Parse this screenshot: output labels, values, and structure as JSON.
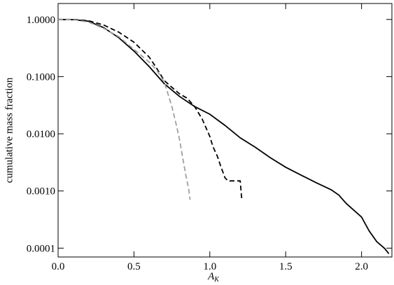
{
  "chart_data": {
    "type": "line",
    "xlabel": "A",
    "xlabel_sub": "K",
    "ylabel": "cumulative mass fraction",
    "xlim": [
      0,
      2.2
    ],
    "ylim": [
      7e-05,
      1.9
    ],
    "ylog": true,
    "xticks": [
      {
        "value": 0,
        "label": "0.0"
      },
      {
        "value": 0.5,
        "label": "0.5"
      },
      {
        "value": 1,
        "label": "1.0"
      },
      {
        "value": 1.5,
        "label": "1.5"
      },
      {
        "value": 2,
        "label": "2.0"
      }
    ],
    "yticks": [
      {
        "value": 1,
        "label": "1.0000"
      },
      {
        "value": 0.1,
        "label": "0.1000"
      },
      {
        "value": 0.01,
        "label": "0.0100"
      },
      {
        "value": 0.001,
        "label": "0.0010"
      },
      {
        "value": 0.0001,
        "label": "0.0001"
      }
    ],
    "series": [
      {
        "color": "#000000",
        "dash": false,
        "x": [
          0,
          0.1,
          0.2,
          0.3,
          0.4,
          0.5,
          0.6,
          0.7,
          0.8,
          0.9,
          1.0,
          1.1,
          1.2,
          1.3,
          1.4,
          1.5,
          1.6,
          1.7,
          1.8,
          1.85,
          1.9,
          2.0,
          2.05,
          2.1,
          2.15,
          2.18
        ],
        "values": [
          1.0,
          0.99,
          0.93,
          0.72,
          0.48,
          0.28,
          0.15,
          0.075,
          0.045,
          0.03,
          0.022,
          0.014,
          0.0085,
          0.0058,
          0.0038,
          0.0026,
          0.0019,
          0.0014,
          0.00105,
          0.00085,
          0.0006,
          0.00035,
          0.0002,
          0.00013,
          0.0001,
          8e-05
        ]
      },
      {
        "color": "#000000",
        "dash": true,
        "x": [
          0,
          0.1,
          0.2,
          0.3,
          0.4,
          0.5,
          0.6,
          0.65,
          0.7,
          0.75,
          0.8,
          0.85,
          0.9,
          0.95,
          1.0,
          1.02,
          1.05,
          1.07,
          1.1,
          1.12,
          1.2,
          1.21
        ],
        "values": [
          1.0,
          1.0,
          0.95,
          0.8,
          0.6,
          0.4,
          0.22,
          0.14,
          0.085,
          0.065,
          0.05,
          0.042,
          0.03,
          0.018,
          0.009,
          0.006,
          0.004,
          0.0028,
          0.0017,
          0.0015,
          0.0015,
          0.00075
        ]
      },
      {
        "color": "#a0a0a0",
        "dash": true,
        "x": [
          0,
          0.1,
          0.2,
          0.3,
          0.4,
          0.5,
          0.6,
          0.65,
          0.7,
          0.75,
          0.78,
          0.8,
          0.82,
          0.84,
          0.86,
          0.87
        ],
        "values": [
          1.0,
          0.99,
          0.9,
          0.7,
          0.5,
          0.3,
          0.18,
          0.13,
          0.08,
          0.03,
          0.014,
          0.008,
          0.004,
          0.002,
          0.0011,
          0.0007
        ]
      }
    ]
  }
}
